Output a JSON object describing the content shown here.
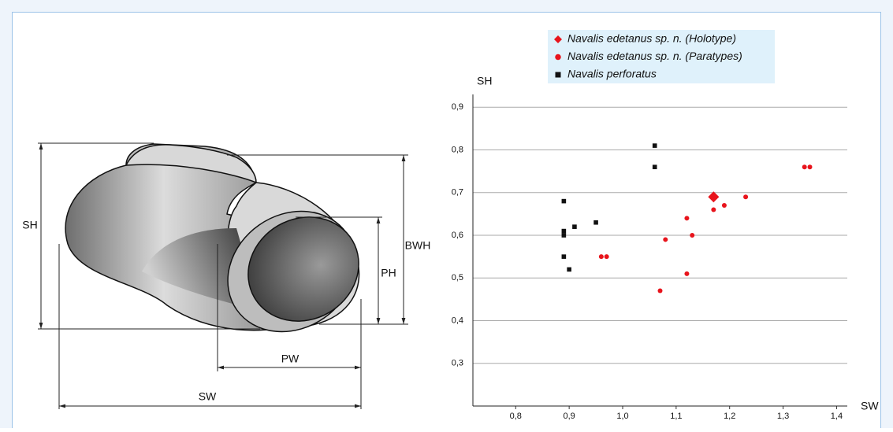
{
  "diagram": {
    "labels": [
      "SH",
      "BWH",
      "PH",
      "PW",
      "SW"
    ]
  },
  "chart_data": {
    "type": "scatter",
    "x_label": "SW",
    "y_label": "SH",
    "xlim": [
      0.72,
      1.42
    ],
    "ylim": [
      0.2,
      0.93
    ],
    "xticks": [
      {
        "value": 0.8,
        "label": "0,8"
      },
      {
        "value": 0.9,
        "label": "0,9"
      },
      {
        "value": 1.0,
        "label": "1,0"
      },
      {
        "value": 1.1,
        "label": "1,1"
      },
      {
        "value": 1.2,
        "label": "1,2"
      },
      {
        "value": 1.3,
        "label": "1,3"
      },
      {
        "value": 1.4,
        "label": "1,4"
      }
    ],
    "yticks": [
      {
        "value": 0.3,
        "label": "0,3"
      },
      {
        "value": 0.4,
        "label": "0,4"
      },
      {
        "value": 0.5,
        "label": "0,5"
      },
      {
        "value": 0.6,
        "label": "0,6"
      },
      {
        "value": 0.7,
        "label": "0,7"
      },
      {
        "value": 0.8,
        "label": "0,8"
      },
      {
        "value": 0.9,
        "label": "0,9"
      }
    ],
    "grid": true,
    "series": [
      {
        "name": "Navalis edetanus sp. n. (Holotype)",
        "color": "#e8141c",
        "marker": "diamond",
        "x": [
          1.17
        ],
        "y": [
          0.69
        ]
      },
      {
        "name": "Navalis edetanus sp. n. (Paratypes)",
        "color": "#e8141c",
        "marker": "circle",
        "x": [
          0.96,
          0.97,
          1.07,
          1.08,
          1.12,
          1.12,
          1.13,
          1.17,
          1.19,
          1.23,
          1.34,
          1.35
        ],
        "y": [
          0.55,
          0.55,
          0.47,
          0.59,
          0.64,
          0.51,
          0.6,
          0.66,
          0.67,
          0.69,
          0.76,
          0.76
        ]
      },
      {
        "name": "Navalis perforatus",
        "color": "#111111",
        "marker": "square",
        "x": [
          0.89,
          0.89,
          0.89,
          0.89,
          0.9,
          0.91,
          0.95,
          1.06,
          1.06
        ],
        "y": [
          0.68,
          0.61,
          0.6,
          0.55,
          0.52,
          0.62,
          0.63,
          0.81,
          0.76
        ]
      }
    ]
  }
}
